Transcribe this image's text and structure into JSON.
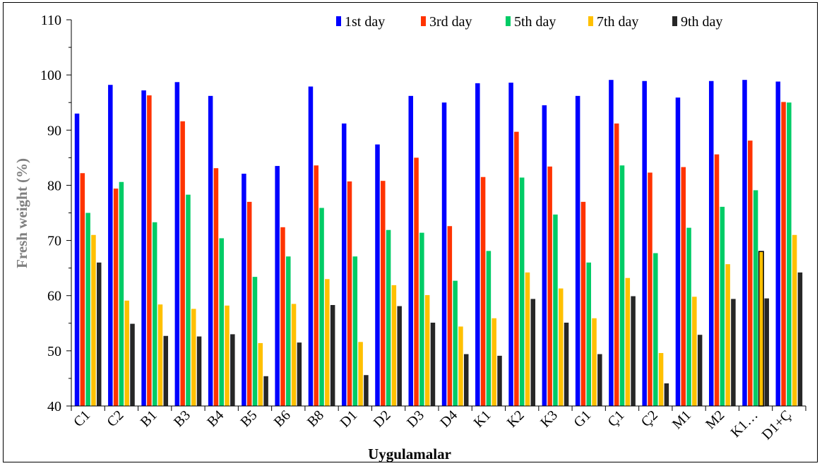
{
  "chart_data": {
    "type": "bar",
    "title": "",
    "xlabel": "Uygulamalar",
    "ylabel": "Fresh weight (%)",
    "ylim": [
      40,
      110
    ],
    "yticks": [
      40,
      50,
      60,
      70,
      80,
      90,
      100,
      110
    ],
    "grid": false,
    "legend_position": "top",
    "categories": [
      "C1",
      "C2",
      "B1",
      "B3",
      "B4",
      "B5",
      "B6",
      "B8",
      "D1",
      "D2",
      "D3",
      "D4",
      "K1",
      "K2",
      "K3",
      "G1",
      "Ç1",
      "Ç2",
      "M1",
      "M2",
      "K1…",
      "D1+Ç"
    ],
    "series": [
      {
        "name": "1st day",
        "color": "#0000ff",
        "values": [
          93.0,
          98.2,
          97.2,
          98.7,
          96.2,
          82.1,
          83.5,
          97.9,
          91.2,
          87.4,
          96.2,
          95.0,
          98.5,
          98.6,
          94.5,
          96.2,
          99.1,
          98.9,
          95.9,
          98.9,
          99.1,
          98.8
        ]
      },
      {
        "name": "3rd day",
        "color": "#ff3300",
        "values": [
          82.2,
          79.4,
          96.3,
          91.6,
          83.1,
          77.0,
          72.4,
          83.6,
          80.7,
          80.8,
          85.0,
          72.6,
          81.5,
          89.7,
          83.4,
          77.0,
          91.2,
          82.3,
          83.3,
          85.6,
          88.1,
          95.1
        ]
      },
      {
        "name": "5th day",
        "color": "#00cc66",
        "values": [
          75.0,
          80.6,
          73.3,
          78.3,
          70.4,
          63.4,
          67.1,
          75.9,
          67.1,
          71.9,
          71.4,
          62.7,
          68.1,
          81.4,
          74.7,
          66.0,
          83.6,
          67.7,
          72.3,
          76.1,
          79.1,
          95.0
        ]
      },
      {
        "name": "7th day",
        "color": "#ffc000",
        "values": [
          71.0,
          59.1,
          58.4,
          57.6,
          58.2,
          51.4,
          58.5,
          63.0,
          51.6,
          61.9,
          60.1,
          54.4,
          55.9,
          64.2,
          61.3,
          55.9,
          63.2,
          49.6,
          59.8,
          65.7,
          68.0,
          71.0
        ]
      },
      {
        "name": "9th day",
        "color": "#262626",
        "values": [
          66.0,
          54.9,
          52.7,
          52.6,
          53.0,
          45.4,
          51.5,
          58.3,
          45.6,
          58.1,
          55.1,
          49.4,
          49.1,
          59.4,
          55.1,
          49.4,
          59.9,
          44.1,
          52.9,
          59.4,
          59.5,
          64.2
        ]
      }
    ],
    "highlighted_bar": {
      "category": "K1…",
      "series": "7th day",
      "outline": "#000000"
    }
  }
}
